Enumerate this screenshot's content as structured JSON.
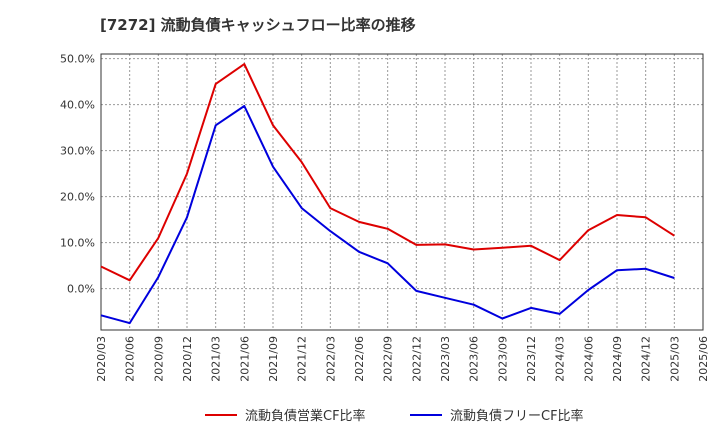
{
  "chart_data": {
    "type": "line",
    "title": "[7272]  流動負債キャッシュフロー比率の推移",
    "x": [
      "2020/03",
      "2020/06",
      "2020/09",
      "2020/12",
      "2021/03",
      "2021/06",
      "2021/09",
      "2021/12",
      "2022/03",
      "2022/06",
      "2022/09",
      "2022/12",
      "2023/03",
      "2023/06",
      "2023/09",
      "2023/12",
      "2024/03",
      "2024/06",
      "2024/09",
      "2024/12",
      "2025/03",
      "2025/06"
    ],
    "ylim": [
      -9,
      51
    ],
    "yticks": [
      "0.0%",
      "10.0%",
      "20.0%",
      "30.0%",
      "40.0%",
      "50.0%"
    ],
    "ytick_values": [
      0,
      10,
      20,
      30,
      40,
      50
    ],
    "grid": true,
    "legend_position": "bottom",
    "series": [
      {
        "name": "流動負債営業CF比率",
        "color": "#dd0000",
        "values": [
          4.8,
          1.8,
          11.0,
          25.0,
          44.5,
          48.8,
          35.5,
          27.5,
          17.5,
          14.5,
          13.0,
          9.5,
          9.6,
          8.5,
          8.9,
          9.3,
          6.2,
          12.7,
          16.0,
          15.5,
          11.5,
          null
        ]
      },
      {
        "name": "流動負債フリーCF比率",
        "color": "#0000dd",
        "values": [
          -5.8,
          -7.5,
          2.5,
          15.5,
          35.5,
          39.7,
          26.5,
          17.5,
          12.5,
          8.0,
          5.5,
          -0.5,
          -2.0,
          -3.5,
          -6.5,
          -4.2,
          -5.5,
          -0.3,
          4.0,
          4.3,
          2.3,
          null
        ]
      }
    ]
  }
}
